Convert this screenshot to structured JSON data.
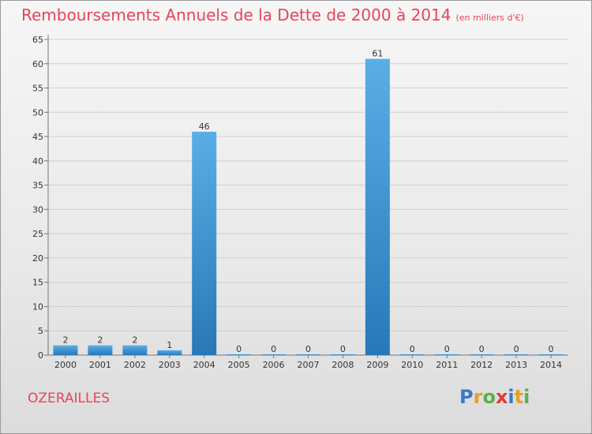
{
  "title": "Remboursements Annuels de la Dette de 2000 à 2014",
  "subtitle": "(en milliers d'€)",
  "commune": "OZERAILLES",
  "logo": {
    "letters": [
      "P",
      "r",
      "o",
      "x",
      "i",
      "t",
      "i"
    ],
    "colors": [
      "#3a78c8",
      "#e8a020",
      "#5ab04a",
      "#e03a3a",
      "#3a78c8",
      "#e8a020",
      "#5ab04a"
    ]
  },
  "colors": {
    "title": "#e8445a",
    "bar_top": "#5aaee6",
    "bar_bottom": "#2878b8"
  },
  "chart_data": {
    "type": "bar",
    "title": "Remboursements Annuels de la Dette de 2000 à 2014",
    "categories": [
      "2000",
      "2001",
      "2002",
      "2003",
      "2004",
      "2005",
      "2006",
      "2007",
      "2008",
      "2009",
      "2010",
      "2011",
      "2012",
      "2013",
      "2014"
    ],
    "values": [
      2,
      2,
      2,
      1,
      46,
      0,
      0,
      0,
      0,
      61,
      0,
      0,
      0,
      0,
      0
    ],
    "ylim": [
      0,
      65
    ],
    "yticks": [
      0,
      5,
      10,
      15,
      20,
      25,
      30,
      35,
      40,
      45,
      50,
      55,
      60,
      65
    ],
    "grid": true
  }
}
